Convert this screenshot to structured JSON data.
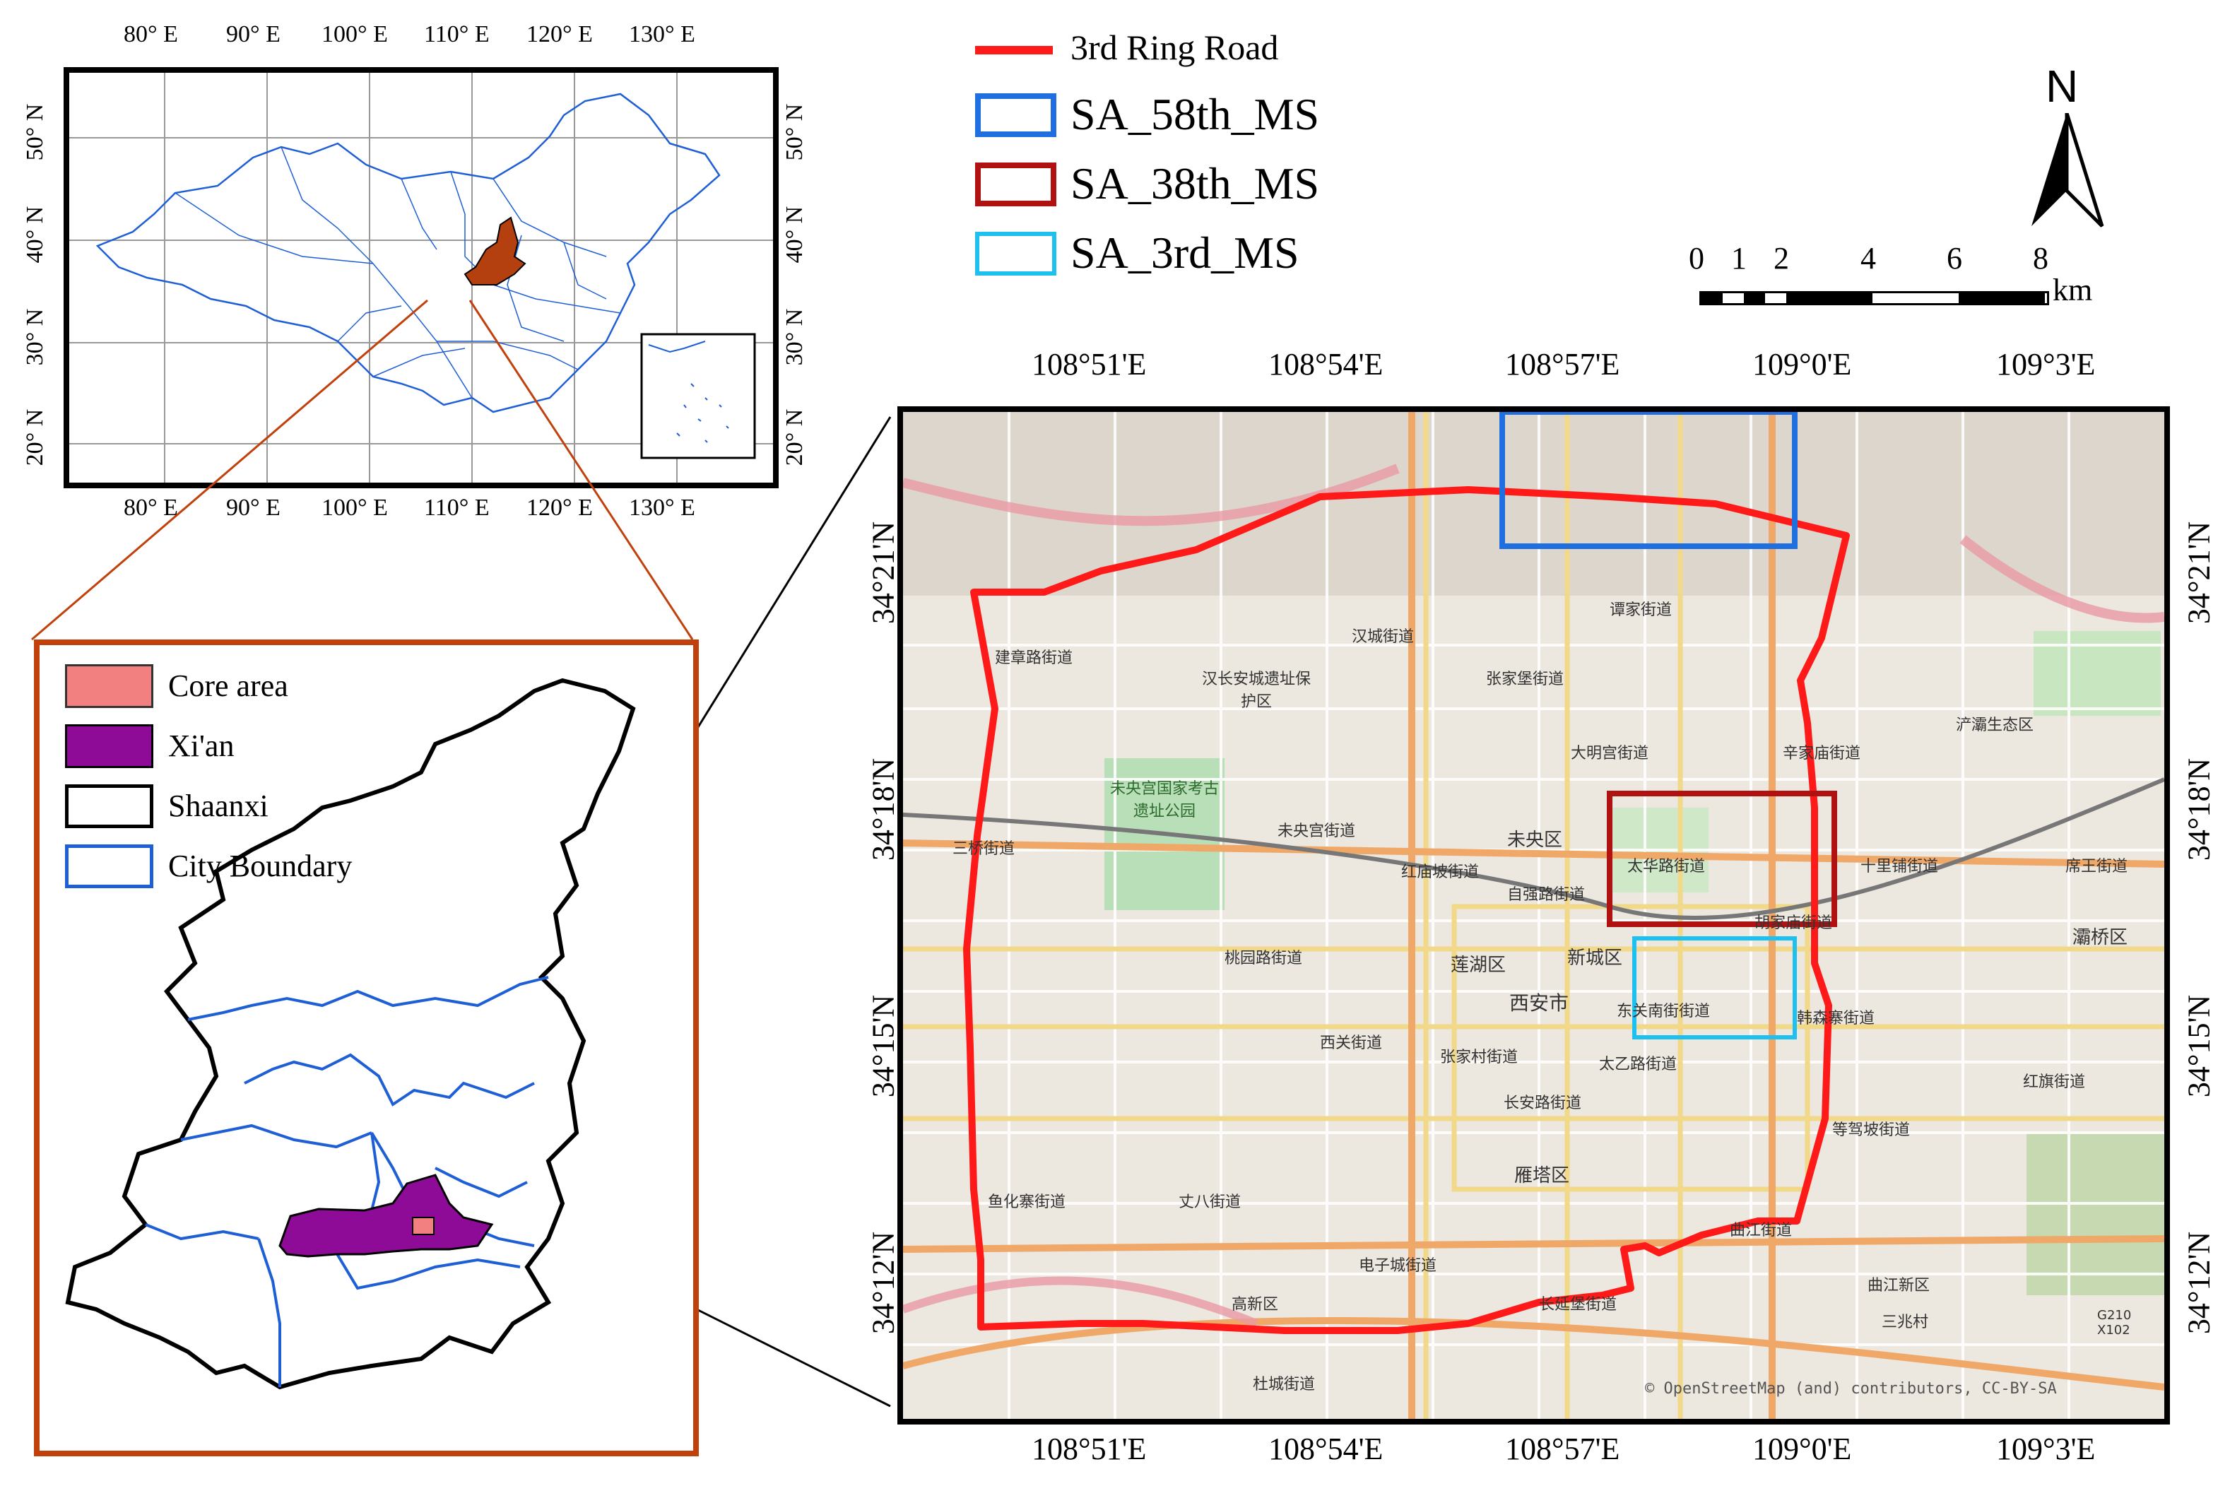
{
  "overview_map": {
    "top_lon_ticks": [
      "80° E",
      "90° E",
      "100° E",
      "110° E",
      "120° E",
      "130° E"
    ],
    "bottom_lon_ticks": [
      "80° E",
      "90° E",
      "100° E",
      "110° E",
      "120° E",
      "130° E"
    ],
    "left_lat_ticks": [
      "50° N",
      "40° N",
      "30° N",
      "20° N"
    ],
    "right_lat_ticks": [
      "50° N",
      "40° N",
      "30° N",
      "20° N"
    ],
    "highlight_color": "#b5400f"
  },
  "province_map": {
    "legend": [
      {
        "label": "Core area",
        "color": "#f28080"
      },
      {
        "label": "Xi'an",
        "color": "#8e0b98"
      },
      {
        "label": "Shaanxi",
        "color": "#000000"
      },
      {
        "label": "City Boundary",
        "color": "#1f5fd6"
      }
    ],
    "frame_color": "#c0410c"
  },
  "main_legend": [
    {
      "label": "3rd Ring Road",
      "color": "#ff1a1a"
    },
    {
      "label": "SA_58th_MS",
      "color": "#1f6fe0"
    },
    {
      "label": "SA_38th_MS",
      "color": "#b01212"
    },
    {
      "label": "SA_3rd_MS",
      "color": "#1ec0f0"
    }
  ],
  "north_arrow": "N",
  "scale_bar": {
    "labels": [
      "0",
      "1",
      "2",
      "4",
      "6",
      "8"
    ],
    "unit": "km"
  },
  "city_map": {
    "top_lon_ticks": [
      "108°51'E",
      "108°54'E",
      "108°57'E",
      "109°0'E",
      "109°3'E"
    ],
    "bottom_lon_ticks": [
      "108°51'E",
      "108°54'E",
      "108°57'E",
      "109°0'E",
      "109°3'E"
    ],
    "left_lat_ticks": [
      "34°21'N",
      "34°18'N",
      "34°15'N",
      "34°12'N"
    ],
    "right_lat_ticks": [
      "34°21'N",
      "34°18'N",
      "34°15'N",
      "34°12'N"
    ],
    "attribution": "© OpenStreetMap (and) contributors, CC-BY-SA",
    "place_labels": [
      "谭家街道",
      "汉城街道",
      "建章路街道",
      "汉长安城遗址保护区",
      "张家堡街道",
      "大明宫街道",
      "辛家庙街道",
      "浐灞生态区",
      "未央宫国家考古遗址公园",
      "未央宫街道",
      "未央区",
      "三桥街道",
      "红庙坡街道",
      "太华路街道",
      "十里铺街道",
      "席王街道",
      "自强路街道",
      "胡家庙街道",
      "灞桥区",
      "桃园路街道",
      "莲湖区",
      "新城区",
      "韩森寨街道",
      "西安市",
      "东关南街街道",
      "西关街道",
      "张家村街道",
      "太乙路街道",
      "红旗街道",
      "长安路街道",
      "等驾坡街道",
      "雁塔区",
      "鱼化寨街道",
      "丈八街道",
      "曲江街道",
      "电子城街道",
      "高新区",
      "长延堡街道",
      "曲江新区",
      "三兆村",
      "杜城街道",
      "G210 X102"
    ]
  }
}
